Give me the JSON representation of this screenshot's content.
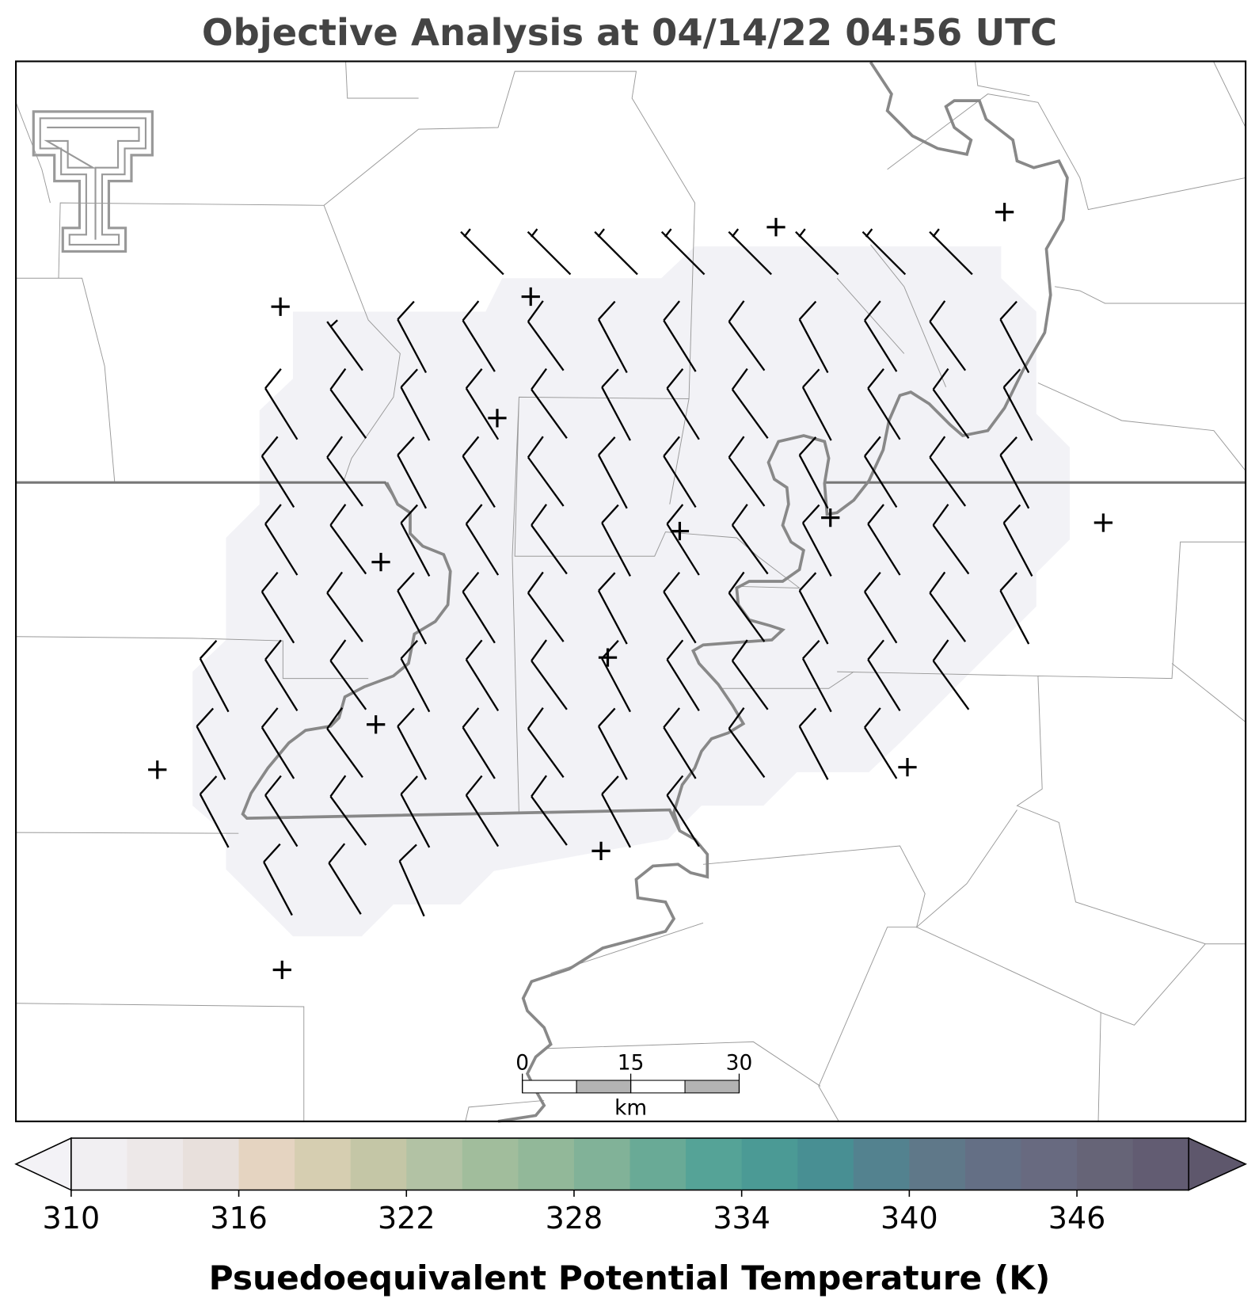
{
  "title": "Objective Analysis at 04/14/22 04:56 UTC",
  "colorbar": {
    "label": "Psuedoequivalent Potential Temperature (K)",
    "lim": [
      310,
      350
    ],
    "ticks": [
      310,
      316,
      322,
      328,
      334,
      340,
      346
    ],
    "colors": [
      "#f1eff2",
      "#ede8e8",
      "#e8e0dc",
      "#e5d4c1",
      "#d6ceb1",
      "#c4c6a6",
      "#b2c2a4",
      "#a1bd9c",
      "#92b899",
      "#81b298",
      "#69aa96",
      "#55a397",
      "#4b9a95",
      "#488f93",
      "#53828f",
      "#5f7889",
      "#646f85",
      "#686a80",
      "#666477",
      "#625c72"
    ],
    "under": "#f3f2f6",
    "over": "#5e576c"
  },
  "scale_bar": {
    "lim": [
      0,
      30
    ],
    "ticks": [
      0,
      15,
      30
    ],
    "unit": "km"
  }
}
